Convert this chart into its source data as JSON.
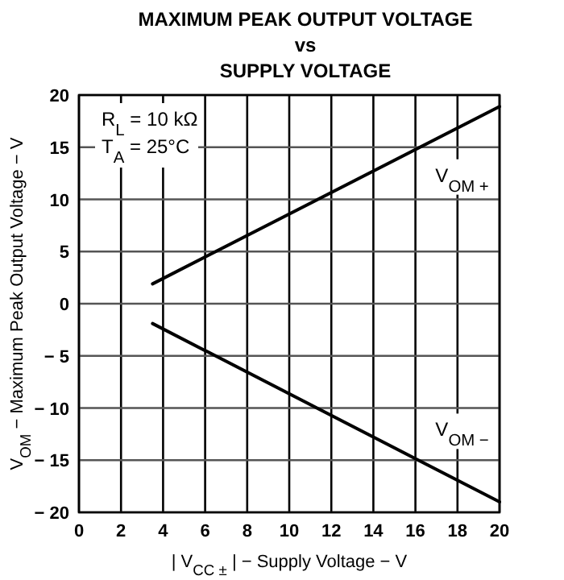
{
  "chart_data": {
    "type": "line",
    "title": "MAXIMUM PEAK OUTPUT VOLTAGE\nvs\nSUPPLY VOLTAGE",
    "xlabel": "| V$_{CC ±}$ | − Supply Voltage − V",
    "ylabel": "V$_{OM}$ − Maximum Peak Output Voltage − V",
    "annotations": [
      "R$_{L}$ = 10 kΩ",
      "T$_{A}$ = 25°C"
    ],
    "x": [
      3.5,
      20
    ],
    "series": [
      {
        "name": "V$_{OM +}$",
        "color": "#000000",
        "values": [
          1.9,
          18.9
        ]
      },
      {
        "name": "V$_{OM −}$",
        "color": "#000000",
        "values": [
          -1.9,
          -19
        ]
      }
    ],
    "xlim": [
      0,
      20
    ],
    "xticks": [
      0,
      2,
      4,
      6,
      8,
      10,
      12,
      14,
      16,
      18,
      20
    ],
    "ylim": [
      -20,
      20
    ],
    "yticks": [
      {
        "value": -20,
        "label": "− 20"
      },
      {
        "value": -15,
        "label": "− 15"
      },
      {
        "value": -10,
        "label": "− 10"
      },
      {
        "value": -5,
        "label": "− 5"
      },
      0,
      5,
      10,
      15,
      20
    ],
    "grid": true,
    "marker": "none",
    "line_style": "solid"
  }
}
